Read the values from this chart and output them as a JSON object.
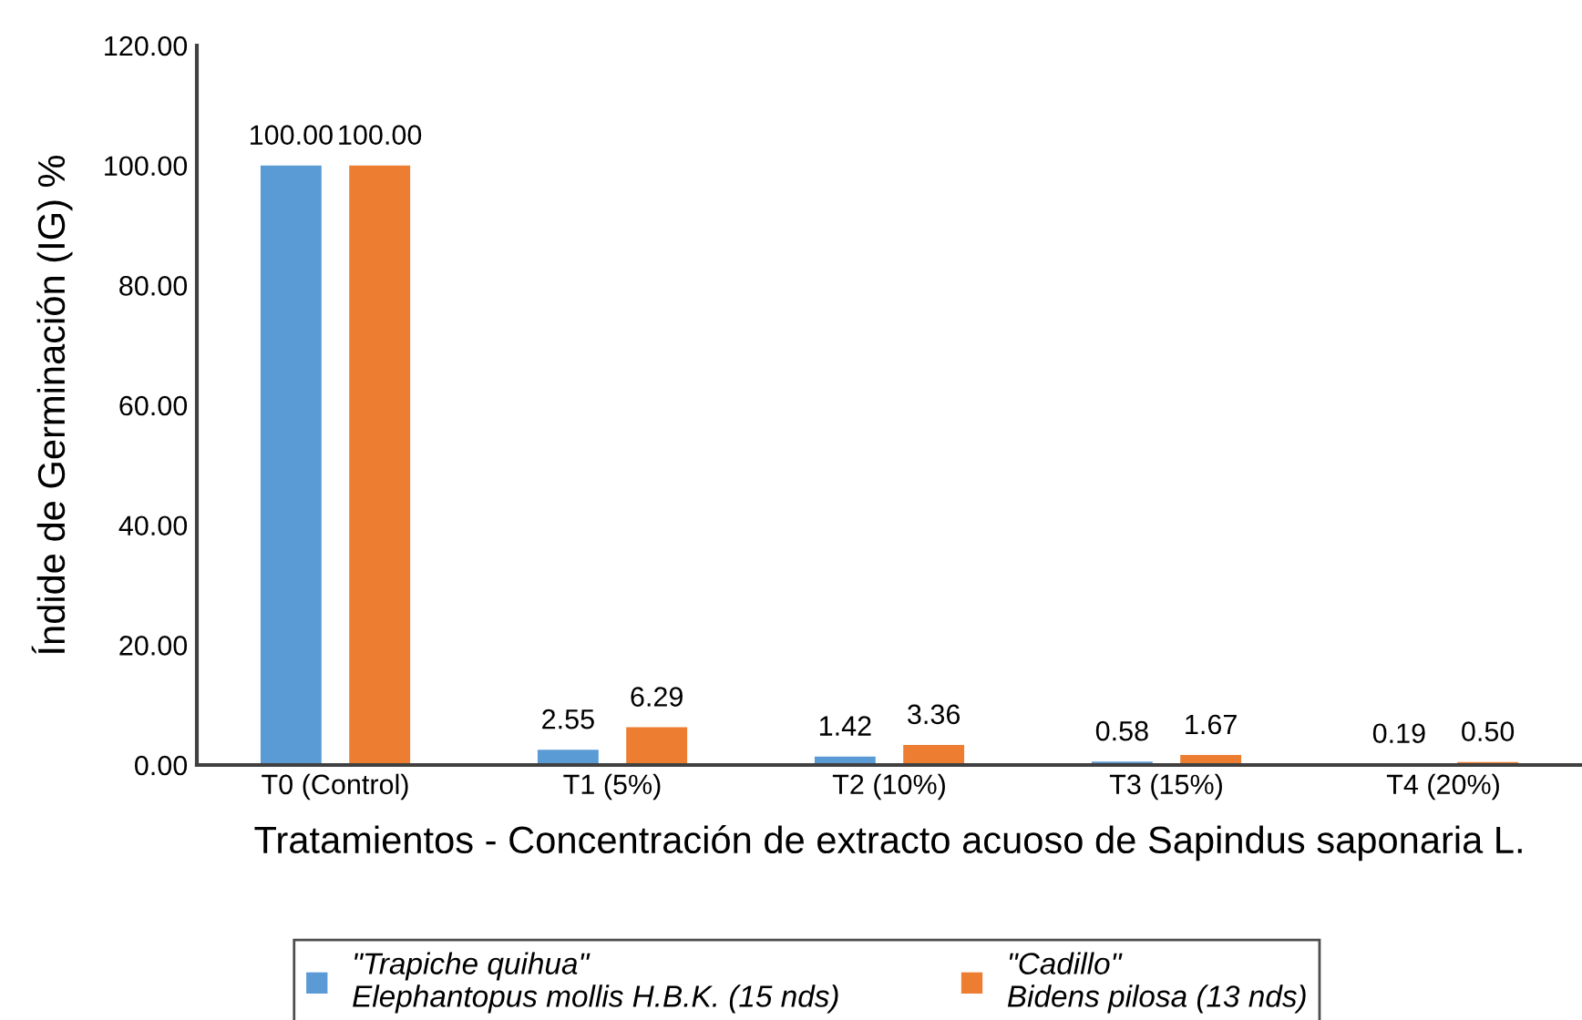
{
  "chart_data": {
    "type": "bar",
    "xlabel": "Tratamientos - Concentración de extracto acuoso de Sapindus saponaria L.",
    "ylabel": "Índide de Germinación (IG) %",
    "categories": [
      "T0 (Control)",
      "T1 (5%)",
      "T2 (10%)",
      "T3 (15%)",
      "T4 (20%)"
    ],
    "series": [
      {
        "name": "\"Trapiche quihua\"\nElephantopus mollis H.B.K. (15 nds)",
        "color": "#5b9bd5",
        "values": [
          100.0,
          2.55,
          1.42,
          0.58,
          0.19
        ],
        "value_labels": [
          "100.00",
          "2.55",
          "1.42",
          "0.58",
          "0.19"
        ]
      },
      {
        "name": "\"Cadillo\"\nBidens pilosa (13 nds)",
        "color": "#ed7d31",
        "values": [
          100.0,
          6.29,
          3.36,
          1.67,
          0.5
        ],
        "value_labels": [
          "100.00",
          "6.29",
          "3.36",
          "1.67",
          "0.50"
        ]
      }
    ],
    "ylim": [
      0,
      120
    ],
    "yticks": [
      {
        "value": 0,
        "label": "0.00"
      },
      {
        "value": 20,
        "label": "20.00"
      },
      {
        "value": 40,
        "label": "40.00"
      },
      {
        "value": 60,
        "label": "60.00"
      },
      {
        "value": 80,
        "label": "80.00"
      },
      {
        "value": 100,
        "label": "100.00"
      },
      {
        "value": 120,
        "label": "120.00"
      }
    ],
    "grid": false,
    "legend": "bottom"
  }
}
